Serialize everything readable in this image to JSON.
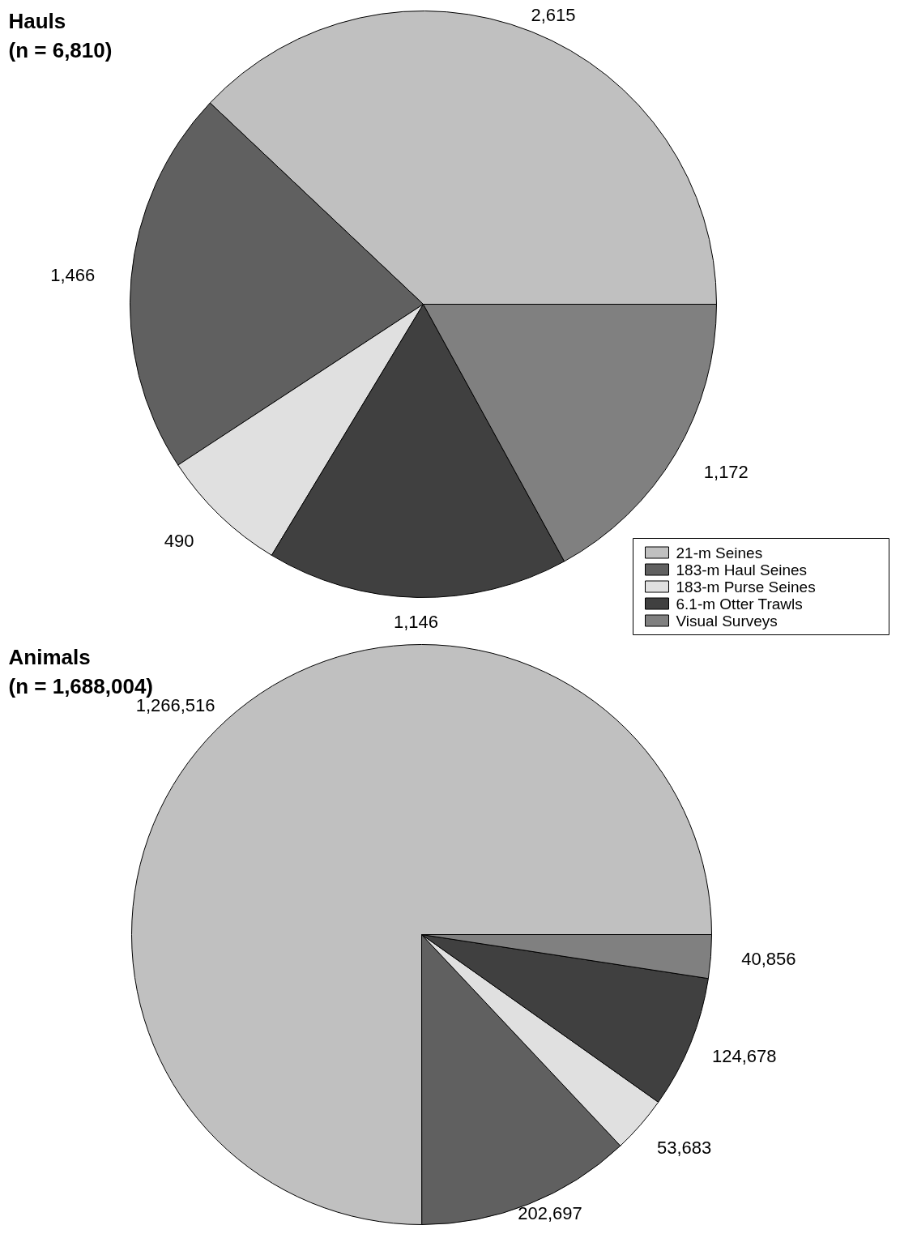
{
  "chart_data": [
    {
      "type": "pie",
      "title": "Hauls\n(n = 6,810)",
      "categories": [
        "21-m Seines",
        "183-m Haul Seines",
        "183-m Purse Seines",
        "6.1-m Otter Trawls",
        "Visual Surveys"
      ],
      "values": [
        2615,
        1466,
        490,
        1146,
        1172
      ],
      "value_labels": [
        "2,615",
        "1,466",
        "490",
        "1,146",
        "1,172"
      ],
      "colors": [
        "#c0c0c0",
        "#606060",
        "#e0e0e0",
        "#404040",
        "#808080"
      ],
      "legend": "bottom right"
    },
    {
      "type": "pie",
      "title": "Animals\n(n = 1,688,004)",
      "categories": [
        null,
        null,
        null,
        null,
        null
      ],
      "values": [
        1266516,
        202697,
        53683,
        124678,
        40856
      ],
      "value_labels": [
        "1,266,516",
        "202,697",
        "53,683",
        "124,678",
        "40,856"
      ],
      "colors": [
        "#c0c0c0",
        "#606060",
        "#e0e0e0",
        "#404040",
        "#808080"
      ]
    }
  ]
}
